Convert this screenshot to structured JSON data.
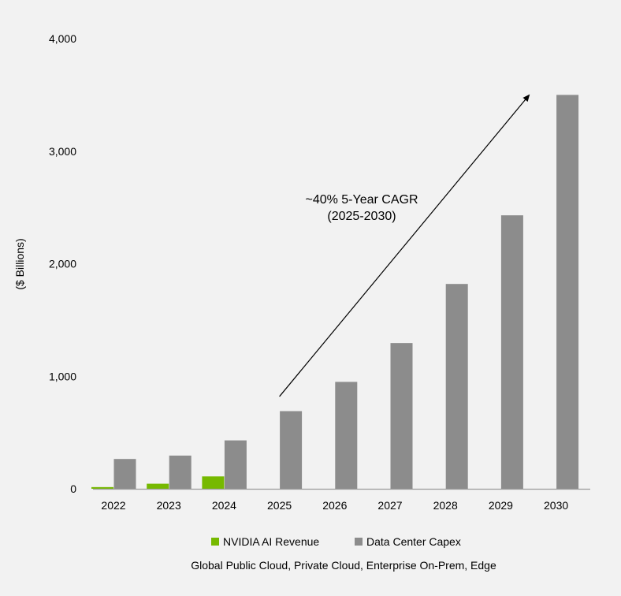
{
  "chart_data": {
    "type": "bar",
    "ylabel": "($ Billions)",
    "ylim": [
      0,
      4000
    ],
    "yticks": [
      0,
      1000,
      2000,
      3000,
      4000
    ],
    "ytick_labels": [
      "0",
      "1,000",
      "2,000",
      "3,000",
      "4,000"
    ],
    "categories": [
      "2022",
      "2023",
      "2024",
      "2025",
      "2026",
      "2027",
      "2028",
      "2029",
      "2030"
    ],
    "series": [
      {
        "name": "NVIDIA AI Revenue",
        "color": "#76b900",
        "values": [
          15,
          45,
          110,
          null,
          null,
          null,
          null,
          null,
          null
        ]
      },
      {
        "name": "Data Center Capex",
        "color": "#8c8c8c",
        "values": [
          265,
          295,
          430,
          690,
          950,
          1295,
          1820,
          2430,
          3500
        ]
      }
    ],
    "annotation": {
      "line1": "~40% 5-Year CAGR",
      "line2": "(2025-2030)",
      "arrow_from": {
        "category": "2025",
        "value": 820
      },
      "arrow_to": {
        "category": "2030",
        "value": 3500
      }
    },
    "legend_position": "bottom",
    "subtitle": "Global Public Cloud, Private Cloud, Enterprise On-Prem, Edge"
  }
}
